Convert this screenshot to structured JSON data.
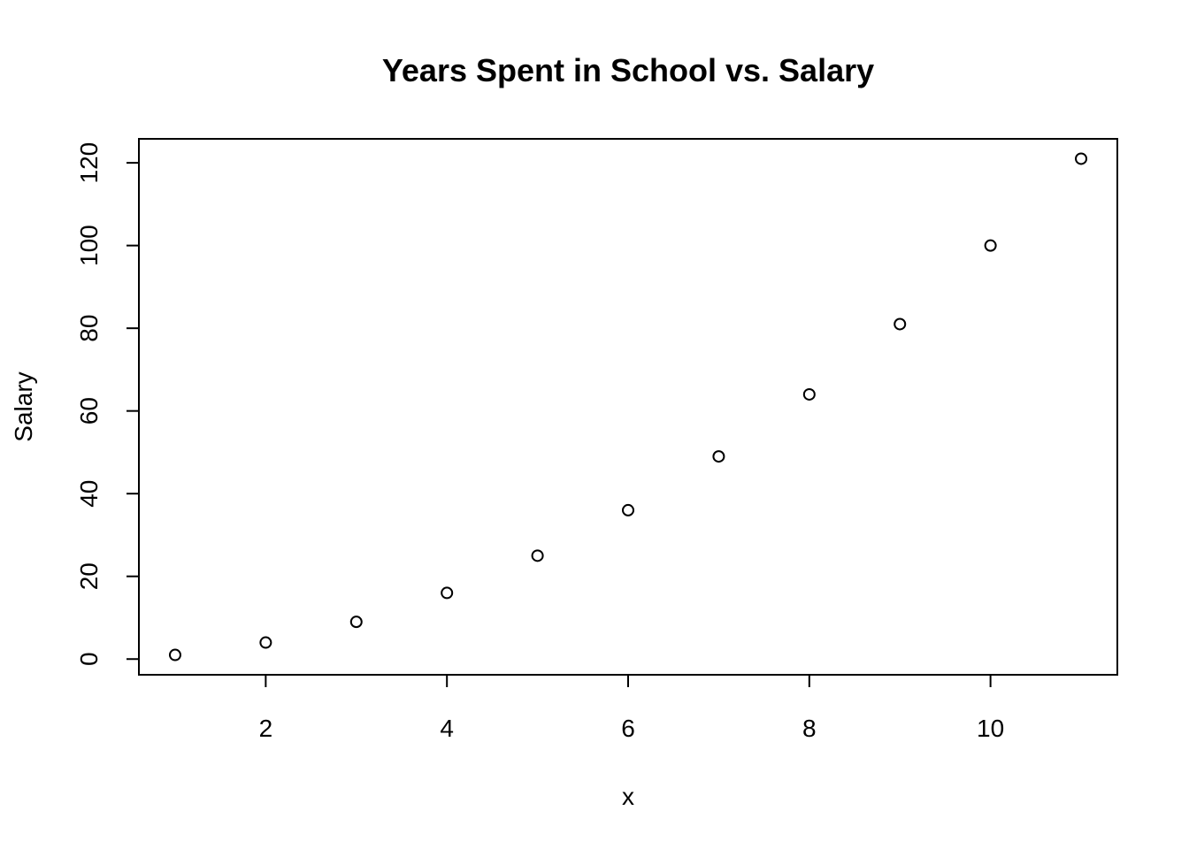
{
  "chart_data": {
    "type": "scatter",
    "title": "Years Spent in School vs. Salary",
    "xlabel": "x",
    "ylabel": "Salary",
    "x": [
      1,
      2,
      3,
      4,
      5,
      6,
      7,
      8,
      9,
      10,
      11
    ],
    "y": [
      1,
      4,
      9,
      16,
      25,
      36,
      49,
      64,
      81,
      100,
      121
    ],
    "xlim": [
      0.6,
      11.4
    ],
    "ylim": [
      -3.8,
      125.8
    ],
    "xticks": [
      2,
      4,
      6,
      8,
      10
    ],
    "yticks": [
      0,
      20,
      40,
      60,
      80,
      100,
      120
    ],
    "marker": "open-circle",
    "grid": false,
    "legend": "none"
  }
}
